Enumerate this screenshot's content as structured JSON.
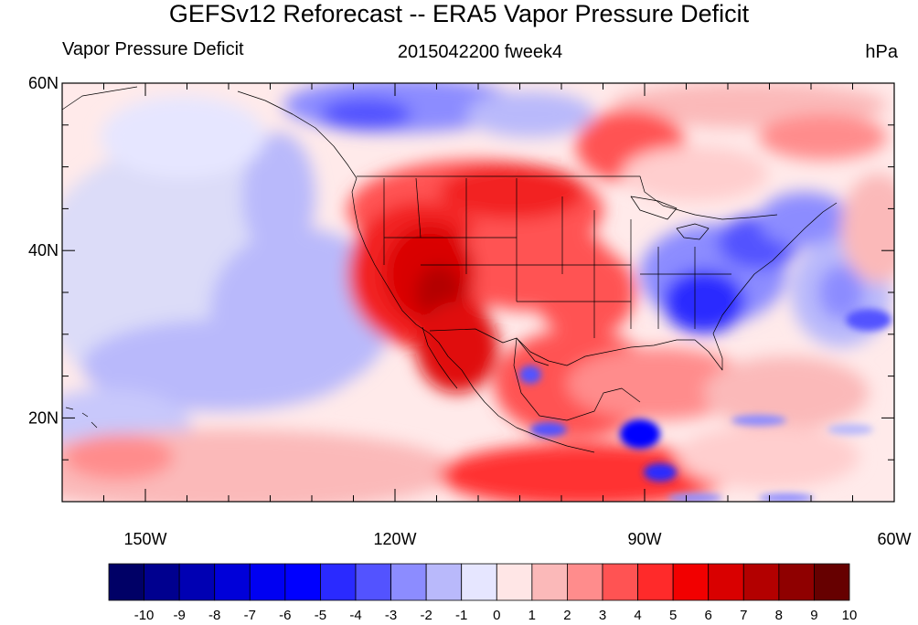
{
  "chart_data": {
    "type": "heatmap",
    "title": "GEFSv12 Reforecast -- ERA5 Vapor Pressure Deficit",
    "left_subtitle": "Vapor Pressure Deficit",
    "center_subtitle": "2015042200 fweek4",
    "right_subtitle": "hPa",
    "x_range": [
      -160,
      -60
    ],
    "y_range": [
      10,
      60
    ],
    "x_ticks": [
      {
        "value": -150,
        "label": "150W"
      },
      {
        "value": -120,
        "label": "120W"
      },
      {
        "value": -90,
        "label": "90W"
      },
      {
        "value": -60,
        "label": "60W"
      }
    ],
    "y_ticks": [
      {
        "value": 20,
        "label": "20N"
      },
      {
        "value": 40,
        "label": "40N"
      },
      {
        "value": 60,
        "label": "60N"
      }
    ],
    "colorbar": {
      "labels": [
        "-10",
        "-9",
        "-8",
        "-7",
        "-6",
        "-5",
        "-4",
        "-3",
        "-2",
        "-1",
        "0",
        "1",
        "2",
        "3",
        "4",
        "5",
        "6",
        "7",
        "8",
        "9",
        "10"
      ],
      "colors": [
        "#000066",
        "#00008f",
        "#0000b3",
        "#0000d9",
        "#0000f2",
        "#0000ff",
        "#2a2aff",
        "#5353ff",
        "#8c8cff",
        "#b9b9fb",
        "#e6e6ff",
        "#ffe6e6",
        "#fbb9b9",
        "#ff8c8c",
        "#ff5353",
        "#ff2a2a",
        "#f20000",
        "#d90000",
        "#b30000",
        "#8f0000",
        "#660000"
      ]
    }
  }
}
